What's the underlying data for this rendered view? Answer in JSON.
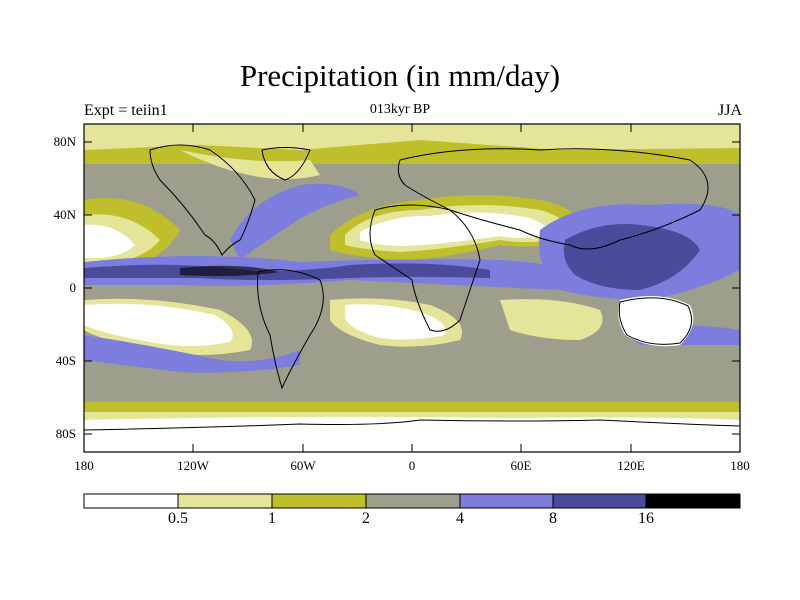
{
  "header": {
    "title": "Precipitation (in mm/day)",
    "left": "Expt = teiin1",
    "center": "013kyr BP",
    "right": "JJA"
  },
  "map": {
    "projection": "cylindrical-equidistant",
    "lat_ticks": [
      "80N",
      "40N",
      "0",
      "40S",
      "80S"
    ],
    "lon_ticks": [
      "180",
      "120W",
      "60W",
      "0",
      "60E",
      "120E",
      "180"
    ]
  },
  "colorbar": {
    "levels": [
      "0.5",
      "1",
      "2",
      "4",
      "8",
      "16"
    ],
    "colors": [
      "#ffffff",
      "#e5e59a",
      "#bfbf2b",
      "#9e9e8c",
      "#7d7ddd",
      "#4b4b9b",
      "#000000"
    ]
  }
}
